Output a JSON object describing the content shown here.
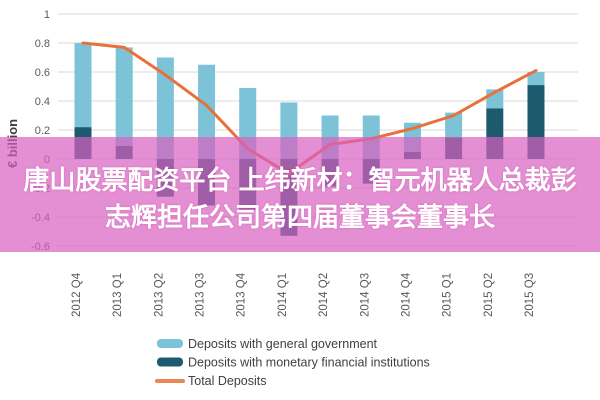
{
  "banner": {
    "line1": "唐山股票配资平台 上纬新材：智元机器人总裁彭",
    "line2": "志辉担任公司第四届董事会董事长",
    "background_color": "#d95fc0",
    "background_opacity": 0.7,
    "text_color": "#ffffff"
  },
  "chart_data": {
    "type": "bar",
    "subtype": "stacked-bars-with-line-overlay",
    "title": "",
    "xlabel": "",
    "ylabel": "€ billion",
    "categories": [
      "2012 Q4",
      "2013 Q1",
      "2013 Q2",
      "2013 Q3",
      "2013 Q4",
      "2014 Q1",
      "2014 Q2",
      "2014 Q3",
      "2014 Q4",
      "2015 Q1",
      "2015 Q2",
      "2015 Q3"
    ],
    "series": [
      {
        "name": "Deposits with general government",
        "kind": "bar",
        "color": "#7cc3d8",
        "values": [
          0.58,
          0.68,
          0.7,
          0.65,
          0.49,
          0.39,
          0.3,
          0.3,
          0.2,
          0.17,
          0.13,
          0.09
        ]
      },
      {
        "name": "Deposits with monetary financial institutions",
        "kind": "bar",
        "color": "#1e5a6e",
        "values": [
          0.22,
          0.09,
          -0.26,
          -0.32,
          -0.35,
          -0.53,
          -0.19,
          -0.17,
          0.05,
          0.15,
          0.35,
          0.51
        ]
      },
      {
        "name": "Total Deposits",
        "kind": "line",
        "color": "#e8713a",
        "values": [
          0.8,
          0.77,
          0.58,
          0.37,
          0.07,
          -0.1,
          0.1,
          0.14,
          0.21,
          0.3,
          0.46,
          0.61
        ]
      }
    ],
    "ylim": [
      -0.6,
      1.0
    ],
    "yticks": [
      1,
      0.8,
      0.6,
      0.4,
      0.2,
      0,
      -0.2,
      -0.4,
      -0.6
    ],
    "ytick_labels": [
      "1",
      "0.8",
      "0.6",
      "0.4",
      "0.2",
      "0",
      "-0.2",
      "-0.4",
      "-0.6"
    ],
    "grid": true,
    "legend_position": "bottom-left",
    "tick_color": "#595959",
    "grid_color": "#d9d9d9",
    "legend_text_color": "#404040"
  }
}
